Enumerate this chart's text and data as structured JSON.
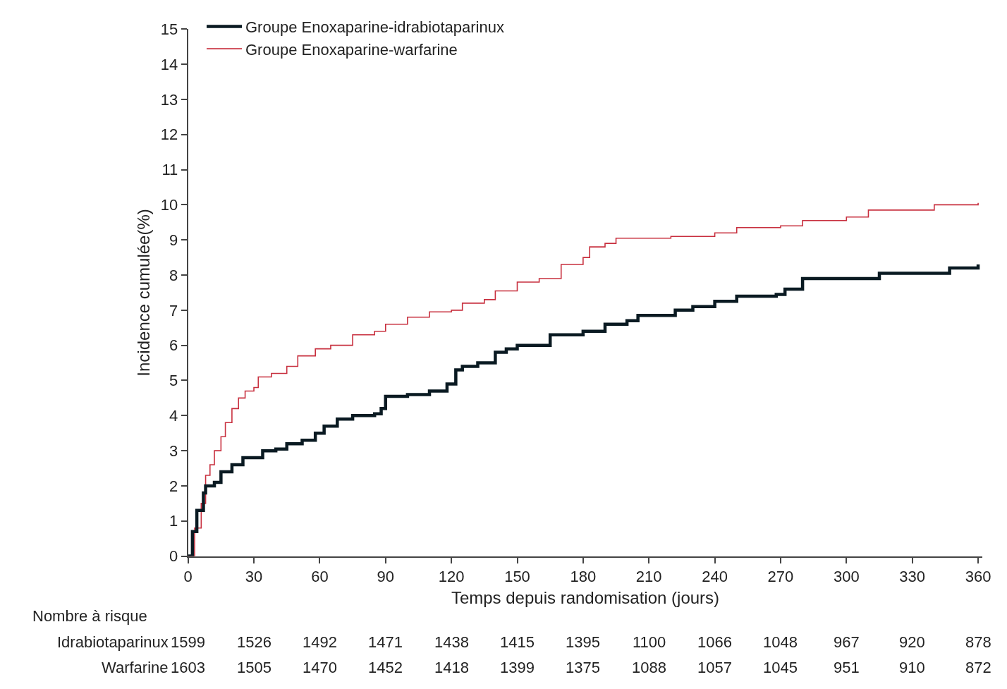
{
  "chart_data": [
    {
      "type": "step",
      "xlabel": "Temps depuis randomisation (jours)",
      "ylabel": "Incidence cumulée(%)",
      "xlim": [
        0,
        362
      ],
      "ylim": [
        0,
        15
      ],
      "xticks": [
        0,
        30,
        60,
        90,
        120,
        150,
        180,
        210,
        240,
        270,
        300,
        330,
        360
      ],
      "yticks": [
        0,
        1,
        2,
        3,
        4,
        5,
        6,
        7,
        8,
        9,
        10,
        11,
        12,
        13,
        14,
        15
      ],
      "grid": false,
      "legend": "top left",
      "marker": "none",
      "line_style": "solid",
      "series": [
        {
          "name": "Groupe Enoxaparine-idrabiotaparinux",
          "color": "#0a1a22",
          "x": [
            0,
            2,
            4,
            7,
            8,
            12,
            15,
            20,
            25,
            32,
            34,
            40,
            45,
            52,
            58,
            62,
            68,
            75,
            85,
            88,
            90,
            100,
            110,
            118,
            122,
            125,
            132,
            140,
            145,
            150,
            160,
            165,
            180,
            190,
            200,
            205,
            215,
            222,
            230,
            240,
            250,
            268,
            272,
            280,
            310,
            315,
            345,
            347,
            359,
            360
          ],
          "values": [
            0,
            0.7,
            1.3,
            1.8,
            2.0,
            2.1,
            2.4,
            2.6,
            2.8,
            2.8,
            3.0,
            3.05,
            3.2,
            3.3,
            3.5,
            3.7,
            3.9,
            4.0,
            4.05,
            4.2,
            4.55,
            4.6,
            4.7,
            4.9,
            5.3,
            5.4,
            5.5,
            5.8,
            5.9,
            6.0,
            6.0,
            6.3,
            6.4,
            6.6,
            6.7,
            6.85,
            6.85,
            7.0,
            7.1,
            7.25,
            7.4,
            7.45,
            7.6,
            7.9,
            7.9,
            8.05,
            8.05,
            8.2,
            8.2,
            8.3
          ]
        },
        {
          "name": "Groupe Enoxaparine-warfarine",
          "color": "#c8303f",
          "x": [
            0,
            3,
            6,
            8,
            10,
            12,
            15,
            17,
            20,
            23,
            26,
            30,
            32,
            38,
            45,
            50,
            58,
            65,
            75,
            85,
            90,
            100,
            110,
            120,
            125,
            135,
            140,
            150,
            160,
            170,
            180,
            183,
            190,
            195,
            220,
            240,
            250,
            270,
            280,
            300,
            310,
            320,
            340,
            360
          ],
          "values": [
            0,
            0.8,
            1.5,
            2.3,
            2.6,
            3.0,
            3.4,
            3.8,
            4.2,
            4.5,
            4.7,
            4.8,
            5.1,
            5.2,
            5.4,
            5.7,
            5.9,
            6.0,
            6.3,
            6.4,
            6.6,
            6.8,
            6.95,
            7.0,
            7.2,
            7.3,
            7.55,
            7.8,
            7.9,
            8.3,
            8.5,
            8.8,
            8.9,
            9.05,
            9.1,
            9.2,
            9.35,
            9.4,
            9.55,
            9.65,
            9.85,
            9.85,
            10.0,
            10.05
          ]
        }
      ]
    },
    {
      "type": "other",
      "title": "Nombre à risque",
      "annotations": [
        "Idrabiotaparinux",
        "1599",
        "1526",
        "1492",
        "1471",
        "1438",
        "1415",
        "1395",
        "1100",
        "1066",
        "1048",
        "967",
        "920",
        "878",
        "Warfarine",
        "1603",
        "1505",
        "1470",
        "1452",
        "1418",
        "1399",
        "1375",
        "1088",
        "1057",
        "1045",
        "951",
        "910",
        "872"
      ]
    }
  ]
}
